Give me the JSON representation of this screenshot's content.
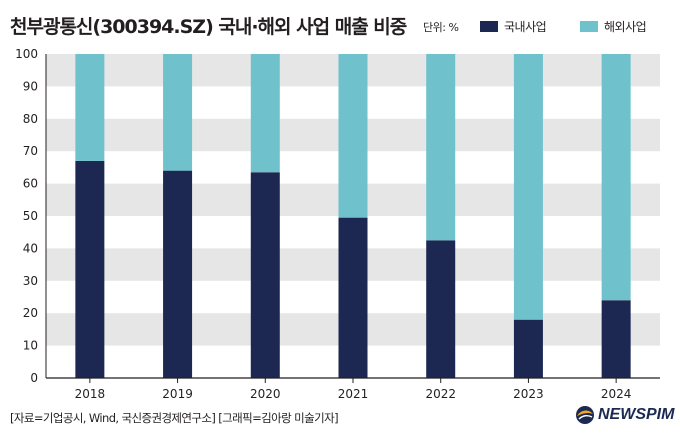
{
  "header": {
    "title": "천부광통신(300394.SZ) 국내·해외 사업 매출 비중",
    "unit": "단위: %"
  },
  "colors": {
    "domestic": "#1c2752",
    "overseas": "#6fc2cc",
    "band": "#e6e6e6",
    "axis": "#231f20"
  },
  "chart_data": {
    "type": "bar",
    "stacked": true,
    "categories": [
      "2018",
      "2019",
      "2020",
      "2021",
      "2022",
      "2023",
      "2024"
    ],
    "series": [
      {
        "name": "국내사업",
        "values": [
          67,
          64,
          63.5,
          49.5,
          42.5,
          18,
          24
        ]
      },
      {
        "name": "해외사업",
        "values": [
          33,
          36,
          36.5,
          50.5,
          57.5,
          82,
          76
        ]
      }
    ],
    "ylim": [
      0,
      100
    ],
    "yticks": [
      "0",
      "10",
      "20",
      "30",
      "40",
      "50",
      "60",
      "70",
      "80",
      "90",
      "100"
    ],
    "legend_position": "top-right",
    "grid": "alternating horizontal bands"
  },
  "footer": {
    "source": "[자료=기업공시, Wind, 국신증권경제연구소] [그래픽=김아랑 미술기자]",
    "logo_text": "NEWSPIM"
  }
}
